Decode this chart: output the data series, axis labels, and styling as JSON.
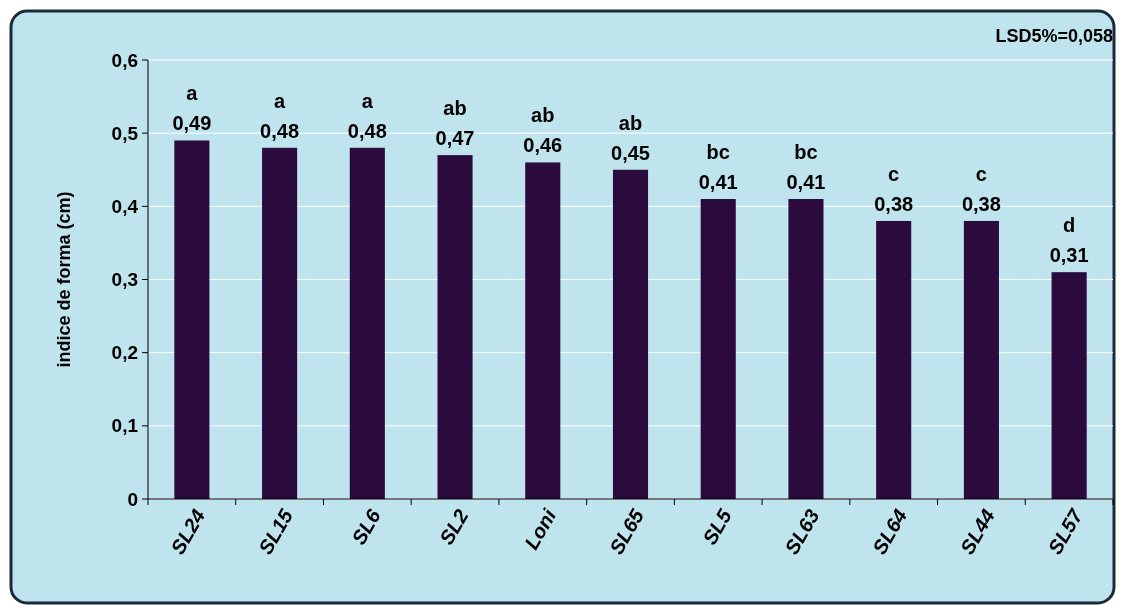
{
  "chart_data": {
    "type": "bar",
    "ylabel": "indice de forma (cm)",
    "categories": [
      "SL24",
      "SL15",
      "SL6",
      "SL2",
      "Loni",
      "SL65",
      "SL5",
      "SL63",
      "SL64",
      "SL44",
      "SL57"
    ],
    "values": [
      0.49,
      0.48,
      0.48,
      0.47,
      0.46,
      0.45,
      0.41,
      0.41,
      0.38,
      0.38,
      0.31
    ],
    "color": "#2b0b3d",
    "ylim": [
      0,
      0.6
    ],
    "yticks": [
      0,
      {
        "value": 0.1,
        "label": "0,1"
      },
      {
        "value": 0.2,
        "label": "0,2"
      },
      {
        "value": 0.3,
        "label": "0,3"
      },
      {
        "value": 0.4,
        "label": "0,4"
      },
      {
        "value": 0.5,
        "label": "0,5"
      },
      {
        "value": 0.6,
        "label": "0,6"
      }
    ],
    "grid": "y",
    "value_labels": [
      "0,49",
      "0,48",
      "0,48",
      "0,47",
      "0,46",
      "0,45",
      "0,41",
      "0,41",
      "0,38",
      "0,38",
      "0,31"
    ],
    "annotations": [
      "LSD5%=0,058",
      {
        "text": "a",
        "x": "SL24",
        "y": 0.49
      },
      {
        "text": "a",
        "x": "SL15",
        "y": 0.48
      },
      {
        "text": "a",
        "x": "SL6",
        "y": 0.48
      },
      {
        "text": "ab",
        "x": "SL2",
        "y": 0.47
      },
      {
        "text": "ab",
        "x": "Loni",
        "y": 0.46
      },
      {
        "text": "ab",
        "x": "SL65",
        "y": 0.45
      },
      {
        "text": "bc",
        "x": "SL5",
        "y": 0.41
      },
      {
        "text": "bc",
        "x": "SL63",
        "y": 0.41
      },
      {
        "text": "c",
        "x": "SL64",
        "y": 0.38
      },
      {
        "text": "c",
        "x": "SL44",
        "y": 0.38
      },
      {
        "text": "d",
        "x": "SL57",
        "y": 0.31
      }
    ]
  }
}
